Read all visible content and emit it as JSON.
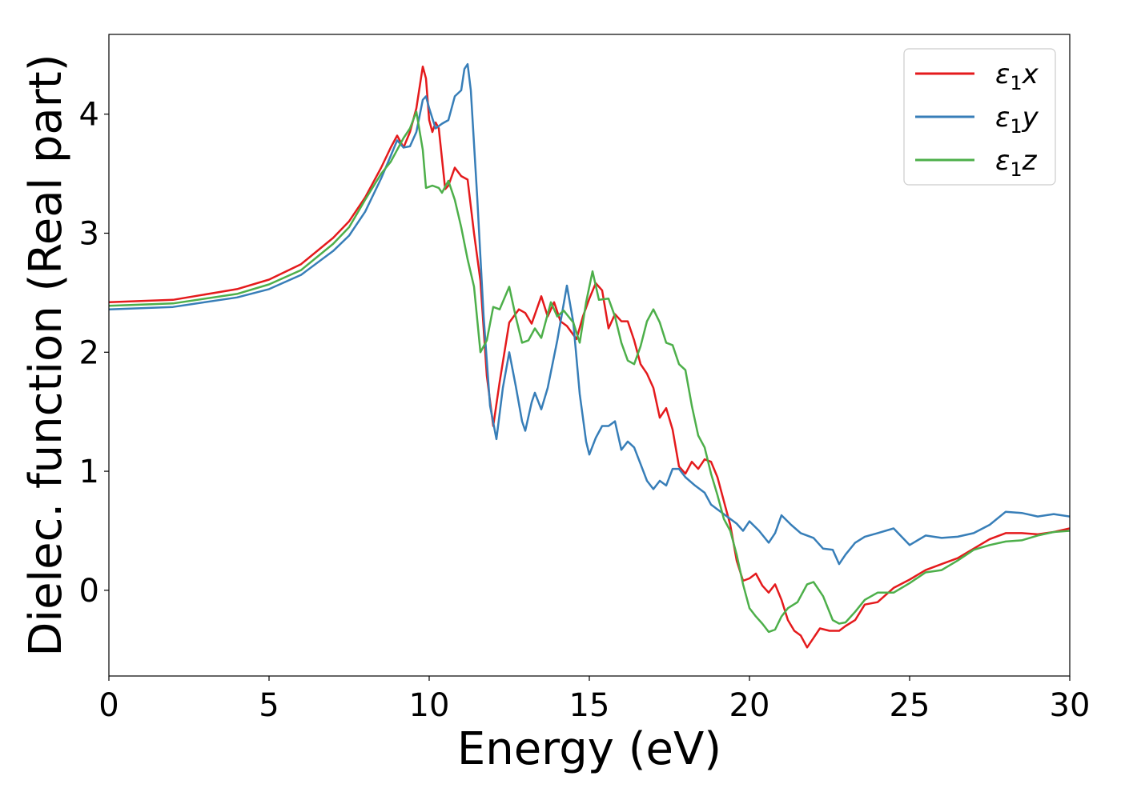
{
  "chart_data": {
    "type": "line",
    "title": "",
    "xlabel": "Energy (eV)",
    "ylabel": "Dielec. function (Real part)",
    "xlim": [
      0,
      30
    ],
    "ylim": [
      -0.72,
      4.67
    ],
    "xticks": [
      "0",
      "5",
      "10",
      "15",
      "20",
      "25",
      "30"
    ],
    "yticks": [
      "0",
      "1",
      "2",
      "3",
      "4"
    ],
    "grid": false,
    "legend_position": "top-right",
    "series": [
      {
        "name": "ε₁x",
        "legend_base": "ε",
        "legend_sub": "1",
        "legend_suffix": "x",
        "color": "#e41a1c",
        "points": [
          [
            0,
            2.42
          ],
          [
            2,
            2.44
          ],
          [
            4,
            2.53
          ],
          [
            5,
            2.61
          ],
          [
            6,
            2.74
          ],
          [
            7,
            2.96
          ],
          [
            7.5,
            3.1
          ],
          [
            8,
            3.3
          ],
          [
            8.5,
            3.55
          ],
          [
            8.8,
            3.72
          ],
          [
            9.0,
            3.82
          ],
          [
            9.2,
            3.72
          ],
          [
            9.4,
            3.85
          ],
          [
            9.6,
            4.05
          ],
          [
            9.8,
            4.4
          ],
          [
            9.9,
            4.3
          ],
          [
            10.0,
            3.95
          ],
          [
            10.1,
            3.85
          ],
          [
            10.2,
            3.93
          ],
          [
            10.3,
            3.88
          ],
          [
            10.5,
            3.37
          ],
          [
            10.6,
            3.4
          ],
          [
            10.8,
            3.55
          ],
          [
            11.0,
            3.48
          ],
          [
            11.2,
            3.45
          ],
          [
            11.4,
            3.0
          ],
          [
            11.6,
            2.6
          ],
          [
            11.8,
            1.8
          ],
          [
            12.0,
            1.38
          ],
          [
            12.2,
            1.75
          ],
          [
            12.5,
            2.25
          ],
          [
            12.8,
            2.36
          ],
          [
            13.0,
            2.33
          ],
          [
            13.2,
            2.24
          ],
          [
            13.5,
            2.47
          ],
          [
            13.7,
            2.3
          ],
          [
            13.9,
            2.42
          ],
          [
            14.1,
            2.26
          ],
          [
            14.3,
            2.22
          ],
          [
            14.6,
            2.11
          ],
          [
            14.8,
            2.3
          ],
          [
            15.0,
            2.45
          ],
          [
            15.2,
            2.58
          ],
          [
            15.4,
            2.52
          ],
          [
            15.6,
            2.2
          ],
          [
            15.8,
            2.32
          ],
          [
            16.0,
            2.26
          ],
          [
            16.2,
            2.26
          ],
          [
            16.4,
            2.1
          ],
          [
            16.6,
            1.9
          ],
          [
            16.8,
            1.82
          ],
          [
            17.0,
            1.7
          ],
          [
            17.2,
            1.45
          ],
          [
            17.4,
            1.53
          ],
          [
            17.6,
            1.35
          ],
          [
            17.8,
            1.04
          ],
          [
            18.0,
            0.98
          ],
          [
            18.2,
            1.08
          ],
          [
            18.4,
            1.02
          ],
          [
            18.6,
            1.1
          ],
          [
            18.8,
            1.08
          ],
          [
            19.0,
            0.95
          ],
          [
            19.2,
            0.75
          ],
          [
            19.4,
            0.55
          ],
          [
            19.6,
            0.25
          ],
          [
            19.8,
            0.08
          ],
          [
            20.0,
            0.1
          ],
          [
            20.2,
            0.14
          ],
          [
            20.4,
            0.04
          ],
          [
            20.6,
            -0.02
          ],
          [
            20.8,
            0.05
          ],
          [
            21.0,
            -0.08
          ],
          [
            21.2,
            -0.25
          ],
          [
            21.4,
            -0.34
          ],
          [
            21.6,
            -0.38
          ],
          [
            21.8,
            -0.48
          ],
          [
            22.0,
            -0.4
          ],
          [
            22.2,
            -0.32
          ],
          [
            22.5,
            -0.34
          ],
          [
            22.8,
            -0.34
          ],
          [
            23.0,
            -0.3
          ],
          [
            23.3,
            -0.25
          ],
          [
            23.6,
            -0.12
          ],
          [
            24.0,
            -0.1
          ],
          [
            24.5,
            0.02
          ],
          [
            25.0,
            0.09
          ],
          [
            25.5,
            0.17
          ],
          [
            26.0,
            0.22
          ],
          [
            26.5,
            0.27
          ],
          [
            27.0,
            0.35
          ],
          [
            27.5,
            0.43
          ],
          [
            28.0,
            0.48
          ],
          [
            28.5,
            0.48
          ],
          [
            29.0,
            0.47
          ],
          [
            29.5,
            0.49
          ],
          [
            30.0,
            0.52
          ]
        ]
      },
      {
        "name": "ε₁y",
        "legend_base": "ε",
        "legend_sub": "1",
        "legend_suffix": "y",
        "color": "#377eb8",
        "points": [
          [
            0,
            2.36
          ],
          [
            2,
            2.38
          ],
          [
            4,
            2.46
          ],
          [
            5,
            2.53
          ],
          [
            6,
            2.65
          ],
          [
            7,
            2.85
          ],
          [
            7.5,
            2.98
          ],
          [
            8,
            3.18
          ],
          [
            8.5,
            3.46
          ],
          [
            8.8,
            3.65
          ],
          [
            9.0,
            3.78
          ],
          [
            9.2,
            3.72
          ],
          [
            9.4,
            3.73
          ],
          [
            9.6,
            3.85
          ],
          [
            9.8,
            4.12
          ],
          [
            9.9,
            4.15
          ],
          [
            10.0,
            4.05
          ],
          [
            10.2,
            3.88
          ],
          [
            10.4,
            3.92
          ],
          [
            10.6,
            3.95
          ],
          [
            10.8,
            4.15
          ],
          [
            11.0,
            4.2
          ],
          [
            11.1,
            4.38
          ],
          [
            11.2,
            4.42
          ],
          [
            11.3,
            4.2
          ],
          [
            11.5,
            3.3
          ],
          [
            11.7,
            2.3
          ],
          [
            11.9,
            1.55
          ],
          [
            12.1,
            1.27
          ],
          [
            12.3,
            1.7
          ],
          [
            12.5,
            2.0
          ],
          [
            12.7,
            1.72
          ],
          [
            12.9,
            1.42
          ],
          [
            13.0,
            1.34
          ],
          [
            13.2,
            1.58
          ],
          [
            13.3,
            1.66
          ],
          [
            13.5,
            1.52
          ],
          [
            13.7,
            1.7
          ],
          [
            14.0,
            2.1
          ],
          [
            14.3,
            2.56
          ],
          [
            14.5,
            2.25
          ],
          [
            14.7,
            1.65
          ],
          [
            14.9,
            1.25
          ],
          [
            15.0,
            1.14
          ],
          [
            15.2,
            1.28
          ],
          [
            15.4,
            1.38
          ],
          [
            15.6,
            1.38
          ],
          [
            15.8,
            1.42
          ],
          [
            16.0,
            1.18
          ],
          [
            16.2,
            1.25
          ],
          [
            16.4,
            1.2
          ],
          [
            16.6,
            1.06
          ],
          [
            16.8,
            0.92
          ],
          [
            17.0,
            0.85
          ],
          [
            17.2,
            0.92
          ],
          [
            17.4,
            0.88
          ],
          [
            17.6,
            1.02
          ],
          [
            17.8,
            1.02
          ],
          [
            18.0,
            0.95
          ],
          [
            18.3,
            0.88
          ],
          [
            18.6,
            0.82
          ],
          [
            18.8,
            0.72
          ],
          [
            19.0,
            0.68
          ],
          [
            19.3,
            0.62
          ],
          [
            19.6,
            0.56
          ],
          [
            19.8,
            0.5
          ],
          [
            20.0,
            0.58
          ],
          [
            20.3,
            0.5
          ],
          [
            20.6,
            0.4
          ],
          [
            20.8,
            0.48
          ],
          [
            21.0,
            0.63
          ],
          [
            21.3,
            0.55
          ],
          [
            21.6,
            0.48
          ],
          [
            22.0,
            0.44
          ],
          [
            22.3,
            0.35
          ],
          [
            22.6,
            0.34
          ],
          [
            22.8,
            0.22
          ],
          [
            23.0,
            0.3
          ],
          [
            23.3,
            0.4
          ],
          [
            23.6,
            0.45
          ],
          [
            24.0,
            0.48
          ],
          [
            24.5,
            0.52
          ],
          [
            25.0,
            0.38
          ],
          [
            25.5,
            0.46
          ],
          [
            26.0,
            0.44
          ],
          [
            26.5,
            0.45
          ],
          [
            27.0,
            0.48
          ],
          [
            27.5,
            0.55
          ],
          [
            28.0,
            0.66
          ],
          [
            28.5,
            0.65
          ],
          [
            29.0,
            0.62
          ],
          [
            29.5,
            0.64
          ],
          [
            30.0,
            0.62
          ]
        ]
      },
      {
        "name": "ε₁z",
        "legend_base": "ε",
        "legend_sub": "1",
        "legend_suffix": "z",
        "color": "#4daf4a",
        "points": [
          [
            0,
            2.39
          ],
          [
            2,
            2.41
          ],
          [
            4,
            2.49
          ],
          [
            5,
            2.57
          ],
          [
            6,
            2.69
          ],
          [
            7,
            2.91
          ],
          [
            7.5,
            3.05
          ],
          [
            8,
            3.28
          ],
          [
            8.5,
            3.5
          ],
          [
            8.8,
            3.6
          ],
          [
            9.0,
            3.7
          ],
          [
            9.2,
            3.8
          ],
          [
            9.4,
            3.88
          ],
          [
            9.6,
            4.02
          ],
          [
            9.8,
            3.7
          ],
          [
            9.9,
            3.38
          ],
          [
            10.1,
            3.4
          ],
          [
            10.3,
            3.38
          ],
          [
            10.4,
            3.34
          ],
          [
            10.6,
            3.44
          ],
          [
            10.8,
            3.28
          ],
          [
            11.0,
            3.05
          ],
          [
            11.2,
            2.78
          ],
          [
            11.4,
            2.55
          ],
          [
            11.6,
            2.0
          ],
          [
            11.8,
            2.1
          ],
          [
            12.0,
            2.38
          ],
          [
            12.2,
            2.36
          ],
          [
            12.5,
            2.55
          ],
          [
            12.7,
            2.3
          ],
          [
            12.9,
            2.08
          ],
          [
            13.1,
            2.1
          ],
          [
            13.3,
            2.2
          ],
          [
            13.5,
            2.12
          ],
          [
            13.8,
            2.42
          ],
          [
            14.0,
            2.3
          ],
          [
            14.2,
            2.35
          ],
          [
            14.5,
            2.25
          ],
          [
            14.7,
            2.08
          ],
          [
            14.9,
            2.42
          ],
          [
            15.1,
            2.68
          ],
          [
            15.3,
            2.44
          ],
          [
            15.6,
            2.45
          ],
          [
            15.8,
            2.3
          ],
          [
            16.0,
            2.08
          ],
          [
            16.2,
            1.93
          ],
          [
            16.4,
            1.9
          ],
          [
            16.6,
            2.05
          ],
          [
            16.8,
            2.26
          ],
          [
            17.0,
            2.36
          ],
          [
            17.2,
            2.25
          ],
          [
            17.4,
            2.08
          ],
          [
            17.6,
            2.06
          ],
          [
            17.8,
            1.9
          ],
          [
            18.0,
            1.85
          ],
          [
            18.2,
            1.55
          ],
          [
            18.4,
            1.3
          ],
          [
            18.6,
            1.2
          ],
          [
            18.8,
            0.98
          ],
          [
            19.0,
            0.8
          ],
          [
            19.2,
            0.6
          ],
          [
            19.4,
            0.5
          ],
          [
            19.6,
            0.3
          ],
          [
            19.8,
            0.05
          ],
          [
            20.0,
            -0.15
          ],
          [
            20.2,
            -0.22
          ],
          [
            20.4,
            -0.28
          ],
          [
            20.6,
            -0.35
          ],
          [
            20.8,
            -0.33
          ],
          [
            21.0,
            -0.22
          ],
          [
            21.2,
            -0.15
          ],
          [
            21.5,
            -0.1
          ],
          [
            21.8,
            0.05
          ],
          [
            22.0,
            0.07
          ],
          [
            22.3,
            -0.05
          ],
          [
            22.6,
            -0.25
          ],
          [
            22.8,
            -0.28
          ],
          [
            23.0,
            -0.27
          ],
          [
            23.3,
            -0.18
          ],
          [
            23.6,
            -0.08
          ],
          [
            24.0,
            -0.02
          ],
          [
            24.5,
            -0.02
          ],
          [
            25.0,
            0.06
          ],
          [
            25.5,
            0.15
          ],
          [
            26.0,
            0.17
          ],
          [
            26.5,
            0.25
          ],
          [
            27.0,
            0.34
          ],
          [
            27.5,
            0.38
          ],
          [
            28.0,
            0.41
          ],
          [
            28.5,
            0.42
          ],
          [
            29.0,
            0.46
          ],
          [
            29.5,
            0.49
          ],
          [
            30.0,
            0.5
          ]
        ]
      }
    ]
  }
}
